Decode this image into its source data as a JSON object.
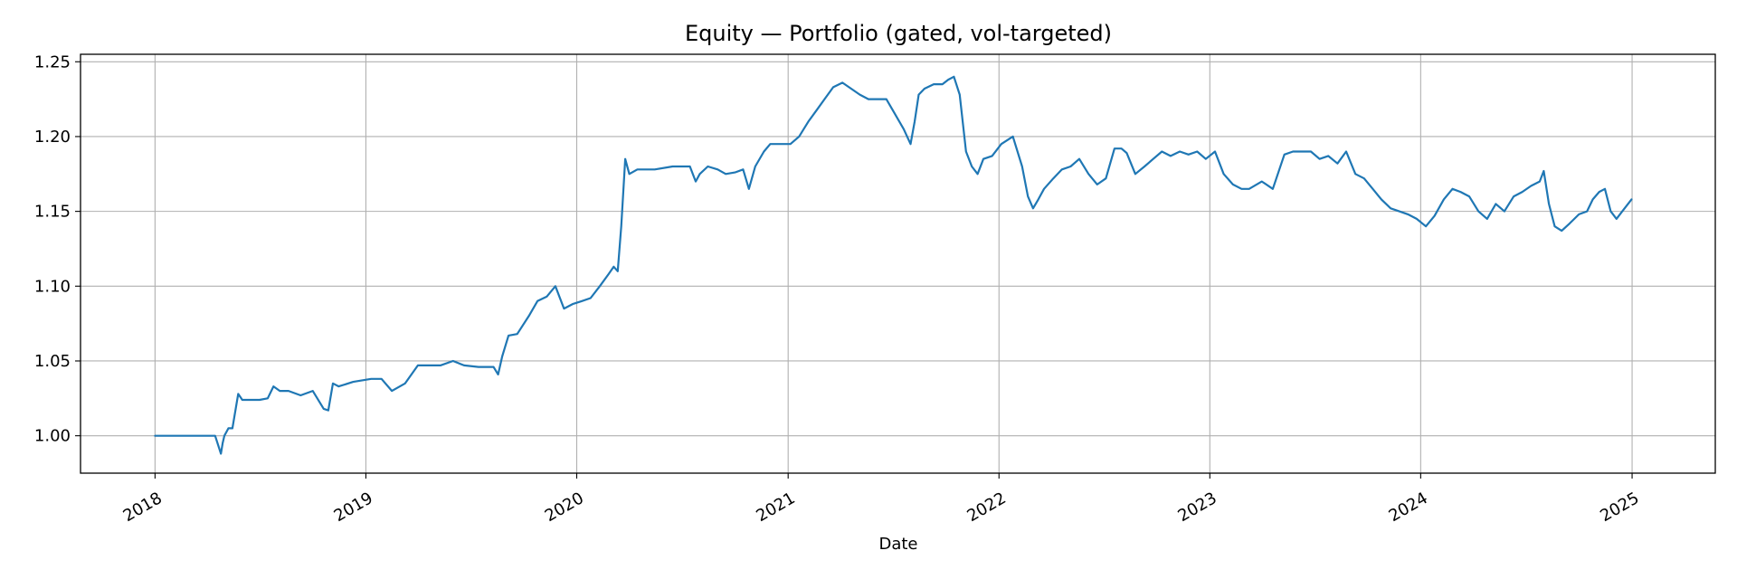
{
  "chart_data": {
    "type": "line",
    "title": "Equity — Portfolio (gated, vol-targeted)",
    "xlabel": "Date",
    "ylabel": "",
    "grid": true,
    "xlim": [
      "2017-08-25",
      "2025-05-25"
    ],
    "ylim": [
      0.975,
      1.255
    ],
    "x_ticks": [
      "2018",
      "2019",
      "2020",
      "2021",
      "2022",
      "2023",
      "2024",
      "2025"
    ],
    "y_ticks": [
      "1.00",
      "1.05",
      "1.10",
      "1.15",
      "1.20",
      "1.25"
    ],
    "colors": {
      "line": "#1f77b4",
      "grid": "#b0b0b0",
      "axes": "#000000"
    },
    "series": [
      {
        "name": "",
        "x": [
          "2018-01-01",
          "2018-04-15",
          "2018-04-25",
          "2018-04-28",
          "2018-05-01",
          "2018-05-08",
          "2018-05-15",
          "2018-05-25",
          "2018-06-01",
          "2018-06-15",
          "2018-07-01",
          "2018-07-15",
          "2018-07-25",
          "2018-08-05",
          "2018-08-20",
          "2018-09-10",
          "2018-10-01",
          "2018-10-20",
          "2018-10-28",
          "2018-11-05",
          "2018-11-15",
          "2018-12-10",
          "2019-01-10",
          "2019-01-20",
          "2019-01-28",
          "2019-02-15",
          "2019-03-10",
          "2019-04-01",
          "2019-04-20",
          "2019-05-10",
          "2019-06-01",
          "2019-06-20",
          "2019-07-15",
          "2019-08-10",
          "2019-08-18",
          "2019-08-25",
          "2019-09-05",
          "2019-09-20",
          "2019-10-10",
          "2019-10-25",
          "2019-11-10",
          "2019-11-25",
          "2019-12-10",
          "2019-12-25",
          "2020-01-10",
          "2020-01-25",
          "2020-02-10",
          "2020-02-25",
          "2020-03-05",
          "2020-03-12",
          "2020-03-18",
          "2020-03-25",
          "2020-04-01",
          "2020-04-15",
          "2020-05-15",
          "2020-06-15",
          "2020-07-15",
          "2020-07-25",
          "2020-08-01",
          "2020-08-15",
          "2020-09-01",
          "2020-09-15",
          "2020-10-01",
          "2020-10-15",
          "2020-10-25",
          "2020-11-05",
          "2020-11-20",
          "2020-12-01",
          "2020-12-20",
          "2021-01-05",
          "2021-01-20",
          "2021-02-05",
          "2021-02-20",
          "2021-03-05",
          "2021-03-20",
          "2021-04-05",
          "2021-04-20",
          "2021-05-05",
          "2021-05-20",
          "2021-06-05",
          "2021-06-20",
          "2021-07-05",
          "2021-07-20",
          "2021-08-01",
          "2021-08-08",
          "2021-08-15",
          "2021-08-25",
          "2021-09-10",
          "2021-09-25",
          "2021-10-05",
          "2021-10-15",
          "2021-10-25",
          "2021-11-05",
          "2021-11-15",
          "2021-11-25",
          "2021-12-05",
          "2021-12-20",
          "2022-01-05",
          "2022-01-25",
          "2022-02-10",
          "2022-02-20",
          "2022-03-01",
          "2022-03-10",
          "2022-03-20",
          "2022-04-05",
          "2022-04-20",
          "2022-05-05",
          "2022-05-20",
          "2022-06-05",
          "2022-06-20",
          "2022-07-05",
          "2022-07-20",
          "2022-08-01",
          "2022-08-10",
          "2022-08-25",
          "2022-09-10",
          "2022-09-25",
          "2022-10-10",
          "2022-10-25",
          "2022-11-10",
          "2022-11-25",
          "2022-12-10",
          "2022-12-25",
          "2023-01-10",
          "2023-01-25",
          "2023-02-10",
          "2023-02-25",
          "2023-03-10",
          "2023-04-01",
          "2023-04-20",
          "2023-05-10",
          "2023-05-25",
          "2023-06-10",
          "2023-06-25",
          "2023-07-10",
          "2023-07-25",
          "2023-08-10",
          "2023-08-25",
          "2023-09-10",
          "2023-09-25",
          "2023-10-10",
          "2023-10-25",
          "2023-11-10",
          "2023-11-25",
          "2023-12-10",
          "2023-12-25",
          "2024-01-10",
          "2024-01-25",
          "2024-02-10",
          "2024-02-25",
          "2024-03-10",
          "2024-03-25",
          "2024-04-10",
          "2024-04-25",
          "2024-05-10",
          "2024-05-25",
          "2024-06-10",
          "2024-06-25",
          "2024-07-10",
          "2024-07-25",
          "2024-08-01",
          "2024-08-10",
          "2024-08-20",
          "2024-09-01",
          "2024-09-15",
          "2024-10-01",
          "2024-10-15",
          "2024-10-25",
          "2024-11-05",
          "2024-11-15",
          "2024-11-25",
          "2024-12-05",
          "2024-12-15",
          "2024-12-31"
        ],
        "y": [
          1.0,
          1.0,
          0.988,
          0.995,
          1.0,
          1.005,
          1.005,
          1.028,
          1.024,
          1.024,
          1.024,
          1.025,
          1.033,
          1.03,
          1.03,
          1.027,
          1.03,
          1.018,
          1.017,
          1.035,
          1.033,
          1.036,
          1.038,
          1.038,
          1.038,
          1.03,
          1.035,
          1.047,
          1.047,
          1.047,
          1.05,
          1.047,
          1.046,
          1.046,
          1.041,
          1.053,
          1.067,
          1.068,
          1.08,
          1.09,
          1.093,
          1.1,
          1.085,
          1.088,
          1.09,
          1.092,
          1.1,
          1.108,
          1.113,
          1.11,
          1.14,
          1.185,
          1.175,
          1.178,
          1.178,
          1.18,
          1.18,
          1.17,
          1.175,
          1.18,
          1.178,
          1.175,
          1.176,
          1.178,
          1.165,
          1.18,
          1.19,
          1.195,
          1.195,
          1.195,
          1.2,
          1.21,
          1.218,
          1.225,
          1.233,
          1.236,
          1.232,
          1.228,
          1.225,
          1.225,
          1.225,
          1.215,
          1.205,
          1.195,
          1.21,
          1.228,
          1.232,
          1.235,
          1.235,
          1.238,
          1.24,
          1.228,
          1.19,
          1.18,
          1.175,
          1.185,
          1.187,
          1.195,
          1.2,
          1.18,
          1.16,
          1.152,
          1.158,
          1.165,
          1.172,
          1.178,
          1.18,
          1.185,
          1.175,
          1.168,
          1.172,
          1.192,
          1.192,
          1.189,
          1.175,
          1.18,
          1.185,
          1.19,
          1.187,
          1.19,
          1.188,
          1.19,
          1.185,
          1.19,
          1.175,
          1.168,
          1.165,
          1.165,
          1.17,
          1.165,
          1.188,
          1.19,
          1.19,
          1.19,
          1.185,
          1.187,
          1.182,
          1.19,
          1.175,
          1.172,
          1.165,
          1.158,
          1.152,
          1.15,
          1.148,
          1.145,
          1.14,
          1.147,
          1.158,
          1.165,
          1.163,
          1.16,
          1.15,
          1.145,
          1.155,
          1.15,
          1.16,
          1.163,
          1.167,
          1.17,
          1.177,
          1.155,
          1.14,
          1.137,
          1.142,
          1.148,
          1.15,
          1.158,
          1.163,
          1.165,
          1.15,
          1.145,
          1.15,
          1.158
        ]
      }
    ]
  }
}
